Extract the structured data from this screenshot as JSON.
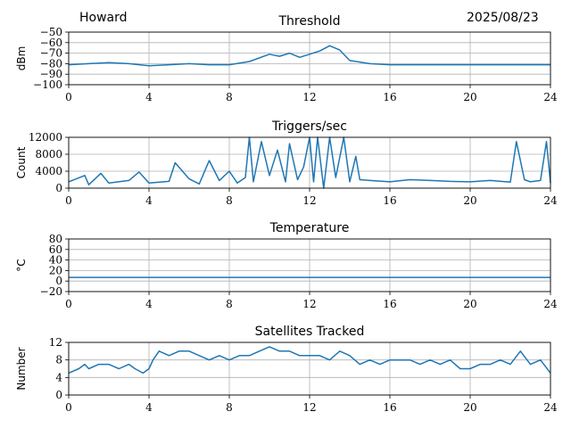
{
  "header": {
    "left": "Howard",
    "right": "2025/08/23"
  },
  "colors": {
    "series": "#1f77b4",
    "grid": "#b0b0b0",
    "axis": "#000000"
  },
  "chart_data": [
    {
      "type": "line",
      "title": "Threshold",
      "ylabel": "dBm",
      "xlim": [
        0,
        24
      ],
      "ylim": [
        -100,
        -50
      ],
      "xticks": [
        0,
        4,
        8,
        12,
        16,
        20,
        24
      ],
      "yticks": [
        -50,
        -60,
        -70,
        -80,
        -90,
        -100
      ],
      "ytick_labels": [
        "−50",
        "−60",
        "−70",
        "−80",
        "−90",
        "−100"
      ],
      "grid": true,
      "series": [
        {
          "x": [
            0,
            1,
            2,
            3,
            4,
            5,
            6,
            7,
            8,
            9,
            10,
            10.5,
            11,
            11.5,
            12,
            12.5,
            13,
            13.5,
            14,
            15,
            16,
            18,
            20,
            22,
            24
          ],
          "y": [
            -81,
            -80,
            -79,
            -80,
            -82,
            -81,
            -80,
            -81,
            -81,
            -78,
            -71,
            -73,
            -70,
            -74,
            -71,
            -68,
            -63,
            -67,
            -77,
            -80,
            -81,
            -81,
            -81,
            -81,
            -81
          ]
        }
      ]
    },
    {
      "type": "line",
      "title": "Triggers/sec",
      "ylabel": "Count",
      "xlim": [
        0,
        24
      ],
      "ylim": [
        0,
        12000
      ],
      "xticks": [
        0,
        4,
        8,
        12,
        16,
        20,
        24
      ],
      "yticks": [
        0,
        4000,
        8000,
        12000
      ],
      "ytick_labels": [
        "0",
        "4000",
        "8000",
        "12000"
      ],
      "grid": true,
      "series": [
        {
          "x": [
            0,
            0.8,
            1,
            1.6,
            2,
            3,
            3.5,
            4,
            5,
            5.3,
            6,
            6.5,
            7,
            7.5,
            8,
            8.4,
            8.8,
            9,
            9.2,
            9.6,
            10,
            10.4,
            10.8,
            11,
            11.4,
            11.7,
            12,
            12.2,
            12.4,
            12.7,
            13,
            13.3,
            13.7,
            14,
            14.3,
            14.5,
            15,
            16,
            17,
            18,
            19,
            20,
            21,
            22,
            22.3,
            22.7,
            23,
            23.5,
            23.8,
            24
          ],
          "y": [
            1500,
            3000,
            800,
            3500,
            1200,
            1800,
            3800,
            1200,
            1600,
            6000,
            2200,
            1000,
            6500,
            1800,
            4000,
            1200,
            2500,
            12000,
            1500,
            11000,
            3000,
            9000,
            1500,
            10500,
            2000,
            5000,
            12000,
            1500,
            12000,
            0,
            12000,
            2500,
            12000,
            1500,
            7500,
            2000,
            1800,
            1500,
            2000,
            1800,
            1600,
            1500,
            1800,
            1400,
            11000,
            2000,
            1500,
            1800,
            11000,
            1200
          ]
        }
      ]
    },
    {
      "type": "line",
      "title": "Temperature",
      "ylabel": "°C",
      "xlim": [
        0,
        24
      ],
      "ylim": [
        -20,
        80
      ],
      "xticks": [
        0,
        4,
        8,
        12,
        16,
        20,
        24
      ],
      "yticks": [
        80,
        60,
        40,
        20,
        0,
        -20
      ],
      "ytick_labels": [
        "80",
        "60",
        "40",
        "20",
        "0",
        "−20"
      ],
      "grid": true,
      "series": [
        {
          "x": [
            0,
            24
          ],
          "y": [
            7,
            7
          ]
        }
      ]
    },
    {
      "type": "line",
      "title": "Satellites Tracked",
      "ylabel": "Number",
      "xlim": [
        0,
        24
      ],
      "ylim": [
        0,
        12
      ],
      "xticks": [
        0,
        4,
        8,
        12,
        16,
        20,
        24
      ],
      "yticks": [
        0,
        4,
        8,
        12
      ],
      "ytick_labels": [
        "0",
        "4",
        "8",
        "12"
      ],
      "grid": true,
      "series": [
        {
          "x": [
            0,
            0.5,
            0.8,
            1,
            1.5,
            2,
            2.5,
            3,
            3.3,
            3.7,
            4,
            4.2,
            4.5,
            5,
            5.5,
            6,
            6.5,
            7,
            7.5,
            8,
            8.5,
            9,
            9.5,
            10,
            10.5,
            11,
            11.5,
            12,
            12.5,
            13,
            13.5,
            14,
            14.5,
            15,
            15.5,
            16,
            16.5,
            17,
            17.5,
            18,
            18.5,
            19,
            19.5,
            20,
            20.5,
            21,
            21.5,
            22,
            22.5,
            23,
            23.5,
            24
          ],
          "y": [
            5,
            6,
            7,
            6,
            7,
            7,
            6,
            7,
            6,
            5,
            6,
            8,
            10,
            9,
            10,
            10,
            9,
            8,
            9,
            8,
            9,
            9,
            10,
            11,
            10,
            10,
            9,
            9,
            9,
            8,
            10,
            9,
            7,
            8,
            7,
            8,
            8,
            8,
            7,
            8,
            7,
            8,
            6,
            6,
            7,
            7,
            8,
            7,
            10,
            7,
            8,
            5
          ]
        }
      ]
    }
  ]
}
